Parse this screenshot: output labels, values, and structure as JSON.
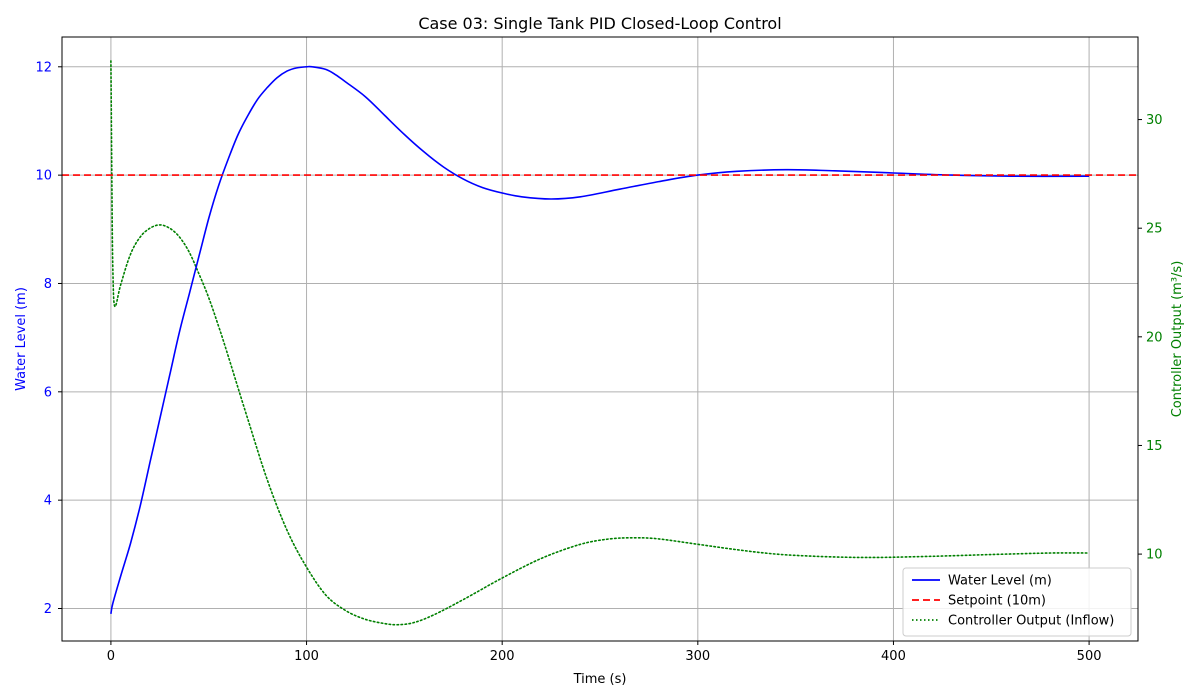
{
  "chart_data": {
    "type": "line",
    "title": "Case 03: Single Tank PID Closed-Loop Control",
    "xlabel": "Time (s)",
    "ylabel_left": "Water Level (m)",
    "ylabel_right": "Controller Output (m³/s)",
    "xlim": [
      -25,
      525
    ],
    "ylim_left": [
      1.4,
      12.55
    ],
    "ylim_right": [
      6.0,
      33.8
    ],
    "x_ticks": [
      0,
      100,
      200,
      300,
      400,
      500
    ],
    "x_tick_labels": [
      "0",
      "100",
      "200",
      "300",
      "400",
      "500"
    ],
    "y_ticks_left": [
      2,
      4,
      6,
      8,
      10,
      12
    ],
    "y_tick_labels_left": [
      "2",
      "4",
      "6",
      "8",
      "10",
      "12"
    ],
    "y_ticks_right": [
      10,
      15,
      20,
      25,
      30
    ],
    "y_tick_labels_right": [
      "10",
      "15",
      "20",
      "25",
      "30"
    ],
    "grid": true,
    "legend_position": "bottom-right",
    "series": [
      {
        "name": "Water Level (m)",
        "axis": "left",
        "color": "#0000ff",
        "style": "solid",
        "x": [
          0,
          1,
          5,
          10,
          15,
          20,
          25,
          30,
          35,
          40,
          45,
          50,
          55,
          60,
          65,
          70,
          75,
          80,
          85,
          90,
          95,
          100,
          103,
          110,
          115,
          120,
          130,
          140,
          150,
          160,
          170,
          180,
          190,
          200,
          210,
          225,
          240,
          260,
          280,
          300,
          320,
          345,
          370,
          400,
          430,
          460,
          500
        ],
        "y": [
          1.9,
          2.1,
          2.6,
          3.2,
          3.9,
          4.7,
          5.5,
          6.3,
          7.1,
          7.8,
          8.5,
          9.2,
          9.8,
          10.3,
          10.75,
          11.1,
          11.4,
          11.62,
          11.8,
          11.92,
          11.98,
          12.0,
          12.0,
          11.95,
          11.85,
          11.72,
          11.45,
          11.1,
          10.75,
          10.43,
          10.15,
          9.93,
          9.77,
          9.67,
          9.6,
          9.56,
          9.6,
          9.74,
          9.88,
          10.0,
          10.07,
          10.1,
          10.08,
          10.04,
          10.0,
          9.98,
          9.98
        ]
      },
      {
        "name": "Setpoint (10m)",
        "axis": "left",
        "color": "#ff0000",
        "style": "dashed",
        "x": [
          -25,
          525
        ],
        "y": [
          10,
          10
        ]
      },
      {
        "name": "Controller Output (Inflow)",
        "axis": "right",
        "color": "#008000",
        "style": "dotted",
        "x": [
          0,
          0.5,
          1,
          2,
          5,
          10,
          15,
          20,
          25,
          30,
          35,
          40,
          45,
          50,
          55,
          60,
          70,
          80,
          90,
          100,
          110,
          120,
          130,
          140,
          147,
          155,
          165,
          180,
          200,
          220,
          240,
          255,
          268,
          280,
          300,
          320,
          340,
          360,
          380,
          395,
          420,
          450,
          480,
          500
        ],
        "y": [
          32.7,
          27.0,
          23.0,
          21.4,
          22.4,
          23.8,
          24.6,
          25.0,
          25.15,
          25.0,
          24.6,
          23.9,
          22.9,
          21.8,
          20.5,
          19.1,
          16.2,
          13.4,
          11.1,
          9.4,
          8.1,
          7.4,
          7.0,
          6.8,
          6.75,
          6.85,
          7.2,
          7.9,
          8.9,
          9.8,
          10.45,
          10.7,
          10.75,
          10.7,
          10.45,
          10.2,
          10.0,
          9.9,
          9.85,
          9.85,
          9.9,
          9.98,
          10.05,
          10.05
        ]
      }
    ]
  }
}
